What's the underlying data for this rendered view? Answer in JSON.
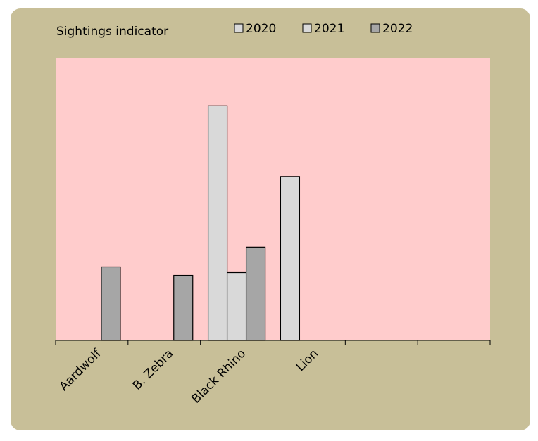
{
  "chart_data": {
    "type": "bar",
    "title": "Sightings indicator",
    "categories": [
      "Aardwolf",
      "B. Zebra",
      "Black Rhino",
      "Lion",
      null,
      null
    ],
    "series": [
      {
        "name": "2020",
        "color": "#d9d9d9",
        "values": [
          null,
          null,
          83,
          58,
          null,
          null
        ]
      },
      {
        "name": "2021",
        "color": "#d9d9d9",
        "values": [
          null,
          null,
          24,
          null,
          null,
          null
        ]
      },
      {
        "name": "2022",
        "color": "#a6a6a6",
        "values": [
          26,
          23,
          33,
          null,
          null,
          null
        ]
      }
    ],
    "ylim": [
      0,
      100
    ],
    "legend": "top",
    "plot_color": "#ffcccc",
    "panel_color": "#c8bf98"
  }
}
